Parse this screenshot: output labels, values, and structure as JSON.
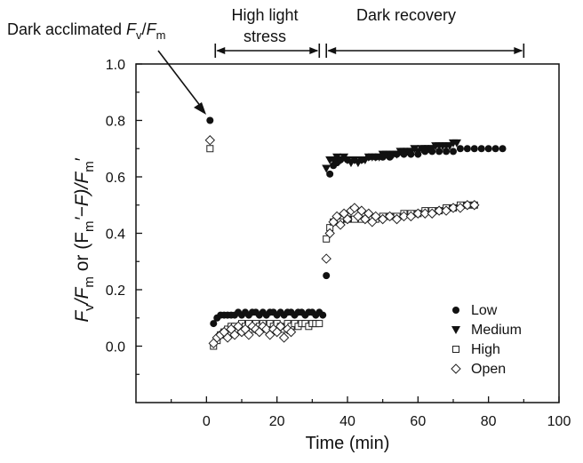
{
  "chart_data": {
    "type": "scatter",
    "xlabel": "Time (min)",
    "ylabel": {
      "a": "F",
      "b": "v",
      "c": "/F",
      "d": "m",
      "e": " or (F",
      "f": "m",
      "g": "′−F)/F",
      "h": "m",
      "i": "′"
    },
    "xlim": [
      -20,
      100
    ],
    "ylim": [
      -0.2,
      1.0
    ],
    "xticks": [
      0,
      20,
      40,
      60,
      80,
      100
    ],
    "yticks": [
      0.0,
      0.2,
      0.4,
      0.6,
      0.8,
      1.0
    ],
    "xtick_labels": [
      "0",
      "20",
      "40",
      "60",
      "80",
      "100"
    ],
    "ytick_labels": [
      "0.0",
      "0.2",
      "0.4",
      "0.6",
      "0.8",
      "1.0"
    ],
    "grid": false,
    "legend_position": "bottom-right",
    "annotations": {
      "dark_acclimated": {
        "a": "Dark acclimated ",
        "b": "F",
        "c": "v",
        "d": "/",
        "e": "F",
        "f": "m",
        "points_to": [
          1,
          0.8
        ]
      },
      "high_light_line1": "High light",
      "high_light_line2": "stress",
      "high_light_span": [
        2.5,
        32
      ],
      "dark_recovery": "Dark recovery",
      "dark_recovery_span": [
        34,
        90
      ]
    },
    "series": [
      {
        "name": "Low",
        "marker": "circle-filled",
        "x": [
          1,
          2,
          3,
          4,
          5,
          6,
          7,
          8,
          9,
          10,
          11,
          12,
          13,
          14,
          15,
          16,
          17,
          18,
          19,
          20,
          21,
          22,
          23,
          24,
          25,
          26,
          27,
          28,
          29,
          30,
          31,
          32,
          33,
          34,
          35,
          36,
          37,
          38,
          40,
          42,
          44,
          46,
          48,
          50,
          52,
          54,
          56,
          58,
          60,
          62,
          64,
          66,
          68,
          70,
          72,
          74,
          76,
          78,
          80,
          82,
          84
        ],
        "y": [
          0.8,
          0.08,
          0.1,
          0.11,
          0.11,
          0.11,
          0.11,
          0.11,
          0.12,
          0.11,
          0.12,
          0.11,
          0.12,
          0.12,
          0.11,
          0.12,
          0.11,
          0.12,
          0.12,
          0.11,
          0.12,
          0.11,
          0.12,
          0.12,
          0.11,
          0.12,
          0.12,
          0.11,
          0.12,
          0.12,
          0.11,
          0.12,
          0.11,
          0.25,
          0.61,
          0.64,
          0.65,
          0.66,
          0.66,
          0.66,
          0.66,
          0.67,
          0.67,
          0.67,
          0.67,
          0.68,
          0.68,
          0.68,
          0.68,
          0.69,
          0.69,
          0.69,
          0.69,
          0.69,
          0.7,
          0.7,
          0.7,
          0.7,
          0.7,
          0.7,
          0.7
        ]
      },
      {
        "name": "Medium",
        "marker": "triangle-down-filled",
        "x": [
          34,
          35,
          36,
          37,
          38,
          39,
          40,
          41,
          42,
          43,
          44,
          45,
          46,
          47,
          48,
          49,
          50,
          51,
          52,
          53,
          54,
          55,
          56,
          57,
          58,
          59,
          60,
          61,
          62,
          63,
          64,
          65,
          66,
          67,
          68,
          69,
          70,
          71
        ],
        "y": [
          0.63,
          0.66,
          0.66,
          0.67,
          0.66,
          0.67,
          0.66,
          0.65,
          0.66,
          0.65,
          0.66,
          0.66,
          0.67,
          0.67,
          0.67,
          0.67,
          0.68,
          0.68,
          0.68,
          0.68,
          0.68,
          0.69,
          0.69,
          0.69,
          0.69,
          0.7,
          0.69,
          0.7,
          0.7,
          0.7,
          0.7,
          0.71,
          0.71,
          0.71,
          0.71,
          0.71,
          0.72,
          0.72
        ]
      },
      {
        "name": "High",
        "marker": "square-open",
        "x": [
          1,
          2,
          3,
          4,
          5,
          6,
          7,
          8,
          9,
          10,
          11,
          12,
          13,
          14,
          15,
          16,
          17,
          18,
          19,
          20,
          21,
          22,
          23,
          24,
          25,
          26,
          27,
          28,
          29,
          30,
          31,
          32,
          34,
          35,
          36,
          37,
          38,
          40,
          42,
          44,
          46,
          48,
          50,
          52,
          54,
          56,
          58,
          60,
          62,
          64,
          66,
          68,
          70,
          72,
          74,
          76
        ],
        "y": [
          0.7,
          0.0,
          0.02,
          0.04,
          0.05,
          0.06,
          0.07,
          0.07,
          0.06,
          0.08,
          0.07,
          0.08,
          0.06,
          0.08,
          0.07,
          0.08,
          0.06,
          0.08,
          0.07,
          0.08,
          0.07,
          0.06,
          0.08,
          0.07,
          0.08,
          0.07,
          0.08,
          0.08,
          0.07,
          0.08,
          0.08,
          0.08,
          0.38,
          0.42,
          0.44,
          0.45,
          0.44,
          0.45,
          0.45,
          0.45,
          0.46,
          0.45,
          0.46,
          0.46,
          0.46,
          0.47,
          0.47,
          0.47,
          0.48,
          0.48,
          0.48,
          0.49,
          0.49,
          0.5,
          0.5,
          0.5
        ]
      },
      {
        "name": "Open",
        "marker": "diamond-open",
        "x": [
          1,
          2,
          3,
          4,
          5,
          6,
          7,
          8,
          9,
          10,
          11,
          12,
          13,
          14,
          15,
          16,
          17,
          18,
          19,
          20,
          21,
          22,
          23,
          24,
          34,
          35,
          36,
          37,
          38,
          39,
          40,
          41,
          42,
          43,
          44,
          45,
          46,
          47,
          48,
          50,
          52,
          54,
          56,
          58,
          60,
          62,
          64,
          66,
          68,
          70,
          72,
          74,
          76
        ],
        "y": [
          0.73,
          0.01,
          0.03,
          0.04,
          0.05,
          0.03,
          0.06,
          0.04,
          0.07,
          0.05,
          0.06,
          0.04,
          0.07,
          0.06,
          0.05,
          0.07,
          0.06,
          0.04,
          0.06,
          0.05,
          0.07,
          0.03,
          0.06,
          0.05,
          0.31,
          0.4,
          0.44,
          0.46,
          0.43,
          0.47,
          0.45,
          0.48,
          0.49,
          0.46,
          0.48,
          0.45,
          0.47,
          0.44,
          0.46,
          0.45,
          0.46,
          0.45,
          0.46,
          0.46,
          0.47,
          0.47,
          0.47,
          0.48,
          0.48,
          0.49,
          0.49,
          0.5,
          0.5
        ]
      }
    ]
  }
}
